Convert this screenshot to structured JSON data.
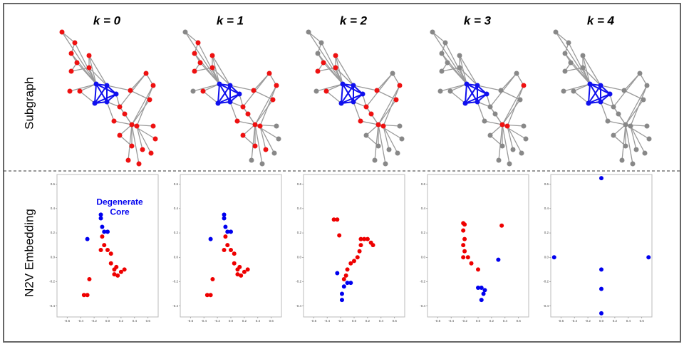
{
  "row_labels": [
    "Subgraph",
    "N2V Embedding"
  ],
  "chart_data": [
    {
      "type": "scatter",
      "title": "k = 0",
      "annotation": "Degenerate Core",
      "annotation_color": "#0000ee",
      "xlim": [
        -0.75,
        0.75
      ],
      "ylim": [
        -0.49,
        0.68
      ],
      "xticks": [
        -0.6,
        -0.4,
        -0.2,
        {
          "value": 0,
          "label": "0.0"
        },
        0.2,
        0.4,
        0.6
      ],
      "yticks": [
        -0.4,
        -0.2,
        {
          "value": 0,
          "label": "0.0"
        },
        0.2,
        0.4,
        0.6
      ],
      "series": [
        {
          "color": "#0000ee",
          "x": [
            -0.1,
            -0.1,
            -0.08,
            -0.05,
            0.0,
            -0.3
          ],
          "values": [
            0.35,
            0.32,
            0.25,
            0.21,
            0.21,
            0.15
          ]
        },
        {
          "color": "#ee0000",
          "x": [
            -0.08,
            -0.05,
            -0.1,
            0.0,
            0.05,
            0.05,
            0.1,
            0.1,
            0.15,
            0.2,
            0.25,
            0.13,
            -0.27,
            -0.35,
            -0.3
          ],
          "values": [
            0.17,
            0.1,
            0.06,
            0.06,
            0.03,
            -0.05,
            -0.1,
            -0.14,
            -0.15,
            -0.12,
            -0.1,
            -0.08,
            -0.18,
            -0.31,
            -0.31
          ]
        }
      ]
    },
    {
      "type": "scatter",
      "title": "k = 1",
      "xlim": [
        -0.75,
        0.75
      ],
      "ylim": [
        -0.49,
        0.68
      ],
      "xticks": [
        -0.6,
        -0.4,
        -0.2,
        {
          "value": 0,
          "label": "0.0"
        },
        0.2,
        0.4,
        0.6
      ],
      "yticks": [
        -0.4,
        -0.2,
        {
          "value": 0,
          "label": "0.0"
        },
        0.2,
        0.4,
        0.6
      ],
      "series": [
        {
          "color": "#0000ee",
          "x": [
            -0.1,
            -0.1,
            -0.08,
            -0.05,
            0.0,
            -0.3
          ],
          "values": [
            0.35,
            0.32,
            0.25,
            0.21,
            0.21,
            0.15
          ]
        },
        {
          "color": "#ee0000",
          "x": [
            -0.08,
            -0.05,
            -0.1,
            0.0,
            0.05,
            0.05,
            0.1,
            0.1,
            0.15,
            0.2,
            0.25,
            0.13,
            -0.27,
            -0.35,
            -0.3
          ],
          "values": [
            0.17,
            0.1,
            0.06,
            0.06,
            0.03,
            -0.05,
            -0.1,
            -0.14,
            -0.15,
            -0.12,
            -0.1,
            -0.08,
            -0.18,
            -0.31,
            -0.31
          ]
        }
      ]
    },
    {
      "type": "scatter",
      "title": "k = 2",
      "xlim": [
        -0.75,
        0.75
      ],
      "ylim": [
        -0.49,
        0.68
      ],
      "xticks": [
        -0.6,
        -0.4,
        -0.2,
        {
          "value": 0,
          "label": "0.0"
        },
        0.2,
        0.4,
        0.6
      ],
      "yticks": [
        -0.4,
        -0.2,
        {
          "value": 0,
          "label": "0.0"
        },
        0.2,
        0.4,
        0.6
      ],
      "series": [
        {
          "color": "#ee0000",
          "x": [
            -0.3,
            -0.25,
            -0.22,
            0.1,
            0.15,
            0.2,
            0.25,
            0.28,
            0.1,
            0.08,
            0.05,
            0.0,
            -0.05,
            -0.1,
            -0.12,
            -0.15
          ],
          "values": [
            0.31,
            0.31,
            0.18,
            0.15,
            0.15,
            0.15,
            0.12,
            0.1,
            0.1,
            0.05,
            0.0,
            -0.03,
            -0.05,
            -0.1,
            -0.15,
            -0.18
          ]
        },
        {
          "color": "#0000ee",
          "x": [
            -0.25,
            -0.1,
            -0.05,
            -0.15,
            -0.18,
            -0.18
          ],
          "values": [
            -0.13,
            -0.21,
            -0.21,
            -0.24,
            -0.3,
            -0.35
          ]
        }
      ]
    },
    {
      "type": "scatter",
      "title": "k = 3",
      "xlim": [
        -0.75,
        0.75
      ],
      "ylim": [
        -0.49,
        0.68
      ],
      "xticks": [
        -0.6,
        -0.4,
        -0.2,
        {
          "value": 0,
          "label": "0.0"
        },
        0.2,
        0.4,
        0.6
      ],
      "yticks": [
        -0.4,
        -0.2,
        {
          "value": 0,
          "label": "0.0"
        },
        0.2,
        0.4,
        0.6
      ],
      "series": [
        {
          "color": "#ee0000",
          "x": [
            -0.22,
            -0.2,
            -0.22,
            -0.2,
            -0.22,
            -0.2,
            -0.22,
            -0.15,
            -0.1,
            0.0,
            0.35
          ],
          "values": [
            0.28,
            0.27,
            0.22,
            0.15,
            0.1,
            0.05,
            0.0,
            0.0,
            -0.05,
            -0.1,
            0.26
          ]
        },
        {
          "color": "#0000ee",
          "x": [
            0.3,
            0.0,
            0.05,
            0.1,
            0.08,
            0.05
          ],
          "values": [
            -0.02,
            -0.25,
            -0.25,
            -0.27,
            -0.3,
            -0.35
          ]
        }
      ]
    },
    {
      "type": "scatter",
      "title": "k = 4",
      "xlim": [
        -0.75,
        0.75
      ],
      "ylim": [
        -0.49,
        0.68
      ],
      "xticks": [
        -0.6,
        -0.4,
        -0.2,
        {
          "value": 0,
          "label": "0.0"
        },
        0.2,
        0.4,
        0.6
      ],
      "yticks": [
        -0.4,
        -0.2,
        {
          "value": 0,
          "label": "0.0"
        },
        0.2,
        0.4,
        0.6
      ],
      "series": [
        {
          "color": "#0000ee",
          "x": [
            0.0,
            -0.7,
            0.7,
            0.0,
            0.0,
            0.0
          ],
          "values": [
            0.65,
            0.0,
            0.0,
            -0.1,
            -0.26,
            -0.46
          ]
        }
      ]
    }
  ]
}
